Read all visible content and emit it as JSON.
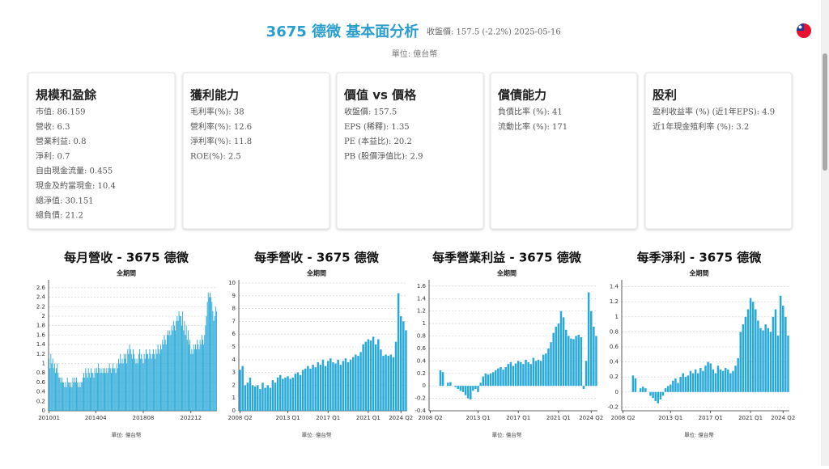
{
  "header": {
    "title": "3675 德微 基本面分析",
    "subtitle": "收盤價: 157.5 (-2.2%) 2025-05-16",
    "unit": "單位: 億台幣"
  },
  "cards": [
    {
      "title": "規模和盈餘",
      "lines": [
        "市值: 86.159",
        "營收: 6.3",
        "營業利益: 0.8",
        "淨利: 0.7",
        "自由現金流量: 0.455",
        "現金及約當現金: 10.4",
        "總淨值: 30.151",
        "總負債: 21.2"
      ]
    },
    {
      "title": "獲利能力",
      "lines": [
        "毛利率(%): 38",
        "營利率(%): 12.6",
        "淨利率(%): 11.8",
        "ROE(%): 2.5"
      ]
    },
    {
      "title": "價值 vs 價格",
      "lines": [
        "收盤價: 157.5",
        "EPS (稀釋): 1.35",
        "PE (本益比): 20.2",
        "PB (股價淨值比): 2.9"
      ]
    },
    {
      "title": "償債能力",
      "lines": [
        "負債比率 (%): 41",
        "流動比率 (%): 171"
      ]
    },
    {
      "title": "股利",
      "lines": [
        "盈利收益率 (%) (近1年EPS): 4.9",
        "近1年現金殖利率 (%): 3.2"
      ]
    }
  ],
  "chart_data": [
    {
      "type": "bar",
      "title": "每月營收 - 3675 德微",
      "subtitle": "全期間",
      "note": "單位: 億台幣",
      "color": "#29a9d8",
      "grid": true,
      "ylim": [
        0,
        2.7
      ],
      "yticks": [
        0,
        0.2,
        0.4,
        0.6,
        0.8,
        1,
        1.2,
        1.4,
        1.6,
        1.8,
        2,
        2.2,
        2.4,
        2.6
      ],
      "categories": [
        "201001",
        null,
        null,
        null,
        null,
        null,
        null,
        null,
        null,
        null,
        null,
        null,
        null,
        null,
        null,
        null,
        null,
        null,
        null,
        null,
        null,
        null,
        null,
        null,
        null,
        null,
        null,
        null,
        null,
        null,
        null,
        null,
        null,
        null,
        null,
        null,
        null,
        null,
        null,
        null,
        null,
        null,
        null,
        null,
        null,
        null,
        null,
        null,
        null,
        null,
        null,
        "201404",
        null,
        null,
        null,
        null,
        null,
        null,
        null,
        null,
        null,
        null,
        null,
        null,
        null,
        null,
        null,
        null,
        null,
        null,
        null,
        null,
        null,
        null,
        null,
        null,
        null,
        null,
        null,
        null,
        null,
        null,
        null,
        null,
        null,
        null,
        null,
        null,
        null,
        null,
        null,
        null,
        null,
        null,
        null,
        null,
        null,
        null,
        null,
        null,
        null,
        null,
        null,
        "201808",
        null,
        null,
        null,
        null,
        null,
        null,
        null,
        null,
        null,
        null,
        null,
        null,
        null,
        null,
        null,
        null,
        null,
        null,
        null,
        null,
        null,
        null,
        null,
        null,
        null,
        null,
        null,
        null,
        null,
        null,
        null,
        null,
        null,
        null,
        null,
        null,
        null,
        null,
        null,
        null,
        null,
        null,
        null,
        null,
        null,
        null,
        null,
        null,
        null,
        null,
        null,
        "202212",
        null,
        null,
        null,
        null,
        null,
        null,
        null,
        null,
        null,
        null,
        null,
        null,
        null,
        null,
        null,
        null,
        null,
        null,
        null,
        null,
        null,
        null,
        null,
        null,
        null,
        null,
        null,
        null
      ],
      "values": [
        1.1,
        0.9,
        1.2,
        1.0,
        1.1,
        0.9,
        1.0,
        0.8,
        0.9,
        1.0,
        0.8,
        0.7,
        0.7,
        0.6,
        0.7,
        0.6,
        0.6,
        0.5,
        0.6,
        0.5,
        0.7,
        0.6,
        0.6,
        0.5,
        0.6,
        0.5,
        0.7,
        0.6,
        0.7,
        0.6,
        0.7,
        0.6,
        0.5,
        0.6,
        0.5,
        0.6,
        0.6,
        0.7,
        0.8,
        0.7,
        0.9,
        0.8,
        0.7,
        0.9,
        0.8,
        0.7,
        0.9,
        0.8,
        0.8,
        0.7,
        0.9,
        0.8,
        0.9,
        0.8,
        1.0,
        0.9,
        0.8,
        0.9,
        0.8,
        0.9,
        0.8,
        0.9,
        0.8,
        0.9,
        0.8,
        0.9,
        1.0,
        0.9,
        0.8,
        0.9,
        1.0,
        0.9,
        0.9,
        0.8,
        1.0,
        0.9,
        1.1,
        1.0,
        1.2,
        1.0,
        1.1,
        1.0,
        1.2,
        1.1,
        1.2,
        1.0,
        1.3,
        1.2,
        1.4,
        1.3,
        1.2,
        1.1,
        1.3,
        1.2,
        1.1,
        1.0,
        1.1,
        1.0,
        1.2,
        1.3,
        1.1,
        1.2,
        1.1,
        1.0,
        1.2,
        1.1,
        1.3,
        1.2,
        1.2,
        1.1,
        1.3,
        1.2,
        1.1,
        1.2,
        1.3,
        1.2,
        1.1,
        1.3,
        1.2,
        1.4,
        1.3,
        1.2,
        1.4,
        1.3,
        1.5,
        1.4,
        1.6,
        1.5,
        1.4,
        1.6,
        1.7,
        1.6,
        1.7,
        1.6,
        1.8,
        1.7,
        1.9,
        1.8,
        1.7,
        1.9,
        2.0,
        1.9,
        2.1,
        2.0,
        2.0,
        1.8,
        2.1,
        1.7,
        1.9,
        1.6,
        1.8,
        1.5,
        1.7,
        1.4,
        1.5,
        1.2,
        1.3,
        1.2,
        1.4,
        1.3,
        1.4,
        1.3,
        1.5,
        1.4,
        1.3,
        1.5,
        1.4,
        1.6,
        1.5,
        1.4,
        1.6,
        1.8,
        2.0,
        2.3,
        2.5,
        2.4,
        2.5,
        2.4,
        2.3,
        2.1,
        1.9,
        2.0,
        2.2,
        2.1
      ]
    },
    {
      "type": "bar",
      "title": "每季營收 - 3675 德微",
      "subtitle": "全期間",
      "note": "單位: 億台幣",
      "color": "#29a9d8",
      "grid": true,
      "ylim": [
        0,
        10
      ],
      "yticks": [
        0,
        1,
        2,
        3,
        4,
        5,
        6,
        7,
        8,
        9,
        10
      ],
      "categories": [
        "2008 Q2",
        null,
        null,
        null,
        null,
        null,
        null,
        null,
        null,
        null,
        null,
        null,
        null,
        null,
        null,
        null,
        null,
        null,
        null,
        "2013 Q1",
        null,
        null,
        null,
        null,
        null,
        null,
        null,
        null,
        null,
        null,
        null,
        null,
        null,
        null,
        null,
        "2017 Q1",
        null,
        null,
        null,
        null,
        null,
        null,
        null,
        null,
        null,
        null,
        null,
        null,
        null,
        null,
        null,
        "2021 Q1",
        null,
        null,
        null,
        null,
        null,
        null,
        null,
        null,
        null,
        null,
        null,
        null,
        "2024 Q2",
        null,
        null
      ],
      "values": [
        3.2,
        3.5,
        2.0,
        2.2,
        2.6,
        2.0,
        1.9,
        2.0,
        1.7,
        2.2,
        1.8,
        2.0,
        1.8,
        2.4,
        2.2,
        2.6,
        2.8,
        2.5,
        2.6,
        2.7,
        2.5,
        2.6,
        2.9,
        3.0,
        2.8,
        3.2,
        3.3,
        3.5,
        3.3,
        3.6,
        3.4,
        3.8,
        3.6,
        4.0,
        3.5,
        3.9,
        4.1,
        3.8,
        3.7,
        4.0,
        3.6,
        3.9,
        4.1,
        3.8,
        4.0,
        4.2,
        4.4,
        4.3,
        4.6,
        5.2,
        5.4,
        5.6,
        5.5,
        5.8,
        5.2,
        5.6,
        4.8,
        4.3,
        4.4,
        4.3,
        4.4,
        4.2,
        5.4,
        9.2,
        7.4,
        7.0,
        6.3
      ]
    },
    {
      "type": "bar",
      "title": "每季營業利益 - 3675 德微",
      "subtitle": "全期間",
      "note": "單位: 億台幣",
      "color": "#29a9d8",
      "grid": true,
      "ylim": [
        -0.4,
        1.65
      ],
      "yticks": [
        -0.4,
        -0.2,
        0,
        0.2,
        0.4,
        0.6,
        0.8,
        1,
        1.2,
        1.4,
        1.6
      ],
      "categories": [
        "2008 Q2",
        null,
        null,
        null,
        null,
        null,
        null,
        null,
        null,
        null,
        null,
        null,
        null,
        null,
        null,
        null,
        null,
        null,
        null,
        "2013 Q1",
        null,
        null,
        null,
        null,
        null,
        null,
        null,
        null,
        null,
        null,
        null,
        null,
        null,
        null,
        null,
        "2017 Q1",
        null,
        null,
        null,
        null,
        null,
        null,
        null,
        null,
        null,
        null,
        null,
        null,
        null,
        null,
        null,
        "2021 Q1",
        null,
        null,
        null,
        null,
        null,
        null,
        null,
        null,
        null,
        null,
        null,
        null,
        "2024 Q2",
        null,
        null
      ],
      "values": [
        0,
        0,
        0,
        0,
        0.25,
        0.22,
        0,
        0.05,
        0.06,
        0,
        -0.02,
        -0.05,
        -0.08,
        -0.1,
        -0.15,
        -0.2,
        -0.22,
        -0.08,
        -0.05,
        -0.1,
        0.05,
        0.15,
        0.2,
        0.18,
        0.2,
        0.22,
        0.25,
        0.28,
        0.3,
        0.26,
        0.3,
        0.35,
        0.38,
        0.32,
        0.36,
        0.4,
        0.38,
        0.35,
        0.42,
        0.38,
        0.35,
        0.45,
        0.4,
        0.42,
        0.4,
        0.5,
        0.52,
        0.6,
        0.7,
        0.85,
        0.95,
        1.0,
        1.2,
        1.1,
        0.9,
        0.8,
        0.76,
        0.75,
        0.8,
        0.82,
        0.78,
        -0.05,
        0.4,
        1.5,
        1.2,
        0.95,
        0.8
      ]
    },
    {
      "type": "bar",
      "title": "每季淨利 - 3675 德微",
      "subtitle": "全期間",
      "note": "單位: 億台幣",
      "color": "#29a9d8",
      "grid": true,
      "ylim": [
        -0.25,
        1.45
      ],
      "yticks": [
        -0.2,
        0,
        0.2,
        0.4,
        0.6,
        0.8,
        1,
        1.2,
        1.4
      ],
      "categories": [
        "2008 Q2",
        null,
        null,
        null,
        null,
        null,
        null,
        null,
        null,
        null,
        null,
        null,
        null,
        null,
        null,
        null,
        null,
        null,
        null,
        "2013 Q1",
        null,
        null,
        null,
        null,
        null,
        null,
        null,
        null,
        null,
        null,
        null,
        null,
        null,
        null,
        null,
        "2017 Q1",
        null,
        null,
        null,
        null,
        null,
        null,
        null,
        null,
        null,
        null,
        null,
        null,
        null,
        null,
        null,
        "2021 Q1",
        null,
        null,
        null,
        null,
        null,
        null,
        null,
        null,
        null,
        null,
        null,
        null,
        "2024 Q2",
        null,
        null
      ],
      "values": [
        0,
        0,
        0,
        0,
        0.22,
        0.18,
        0,
        0.05,
        0.07,
        0.05,
        0,
        -0.05,
        -0.08,
        -0.12,
        -0.15,
        -0.1,
        -0.05,
        0.05,
        0.08,
        0.1,
        0.15,
        0.18,
        0.12,
        0.2,
        0.25,
        0.2,
        0.22,
        0.28,
        0.25,
        0.3,
        0.25,
        0.32,
        0.28,
        0.35,
        0.4,
        0.38,
        0.3,
        0.25,
        0.35,
        0.3,
        0.28,
        0.32,
        0.3,
        0.25,
        0.28,
        0.35,
        0.45,
        0.8,
        0.9,
        1.0,
        1.1,
        1.25,
        1.2,
        1.1,
        0.95,
        0.85,
        0.82,
        0.9,
        0.85,
        0.8,
        1.0,
        1.1,
        0.75,
        1.28,
        1.15,
        1.0,
        0.75
      ]
    }
  ]
}
